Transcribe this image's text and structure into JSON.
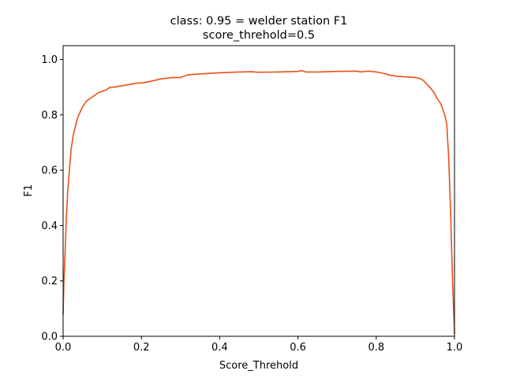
{
  "chart_data": {
    "type": "line",
    "title": "class: 0.95 = welder station F1",
    "subtitle": "score_threhold=0.5",
    "xlabel": "Score_Threhold",
    "ylabel": "F1",
    "xlim": [
      0.0,
      1.0
    ],
    "ylim": [
      0.0,
      1.05
    ],
    "grid": false,
    "legend": "none",
    "x_ticks": [
      0.0,
      0.2,
      0.4,
      0.6,
      0.8,
      1.0
    ],
    "x_tick_labels": [
      "0.0",
      "0.2",
      "0.4",
      "0.6",
      "0.8",
      "1.0"
    ],
    "y_ticks": [
      0.0,
      0.2,
      0.4,
      0.6,
      0.8,
      1.0
    ],
    "y_tick_labels": [
      "0.0",
      "0.2",
      "0.4",
      "0.6",
      "0.8",
      "1.0"
    ],
    "series": [
      {
        "color": "#ec4f17",
        "x": [
          0.0,
          0.002,
          0.005,
          0.008,
          0.012,
          0.016,
          0.02,
          0.025,
          0.03,
          0.035,
          0.04,
          0.05,
          0.06,
          0.07,
          0.08,
          0.09,
          0.1,
          0.11,
          0.12,
          0.13,
          0.15,
          0.17,
          0.19,
          0.2,
          0.22,
          0.25,
          0.28,
          0.3,
          0.32,
          0.35,
          0.4,
          0.45,
          0.48,
          0.5,
          0.55,
          0.6,
          0.61,
          0.62,
          0.65,
          0.7,
          0.75,
          0.76,
          0.78,
          0.8,
          0.82,
          0.83,
          0.85,
          0.88,
          0.9,
          0.91,
          0.92,
          0.93,
          0.94,
          0.95,
          0.955,
          0.96,
          0.965,
          0.97,
          0.975,
          0.98,
          0.985,
          0.99,
          0.995,
          1.0
        ],
        "y": [
          0.08,
          0.2,
          0.3,
          0.42,
          0.53,
          0.6,
          0.67,
          0.72,
          0.75,
          0.78,
          0.8,
          0.83,
          0.85,
          0.86,
          0.87,
          0.88,
          0.885,
          0.89,
          0.9,
          0.9,
          0.905,
          0.91,
          0.915,
          0.915,
          0.92,
          0.93,
          0.935,
          0.935,
          0.945,
          0.948,
          0.952,
          0.955,
          0.956,
          0.954,
          0.955,
          0.957,
          0.96,
          0.955,
          0.955,
          0.957,
          0.958,
          0.955,
          0.958,
          0.955,
          0.95,
          0.945,
          0.94,
          0.937,
          0.935,
          0.932,
          0.925,
          0.91,
          0.895,
          0.875,
          0.86,
          0.85,
          0.84,
          0.82,
          0.8,
          0.77,
          0.65,
          0.45,
          0.2,
          0.01
        ]
      }
    ]
  }
}
